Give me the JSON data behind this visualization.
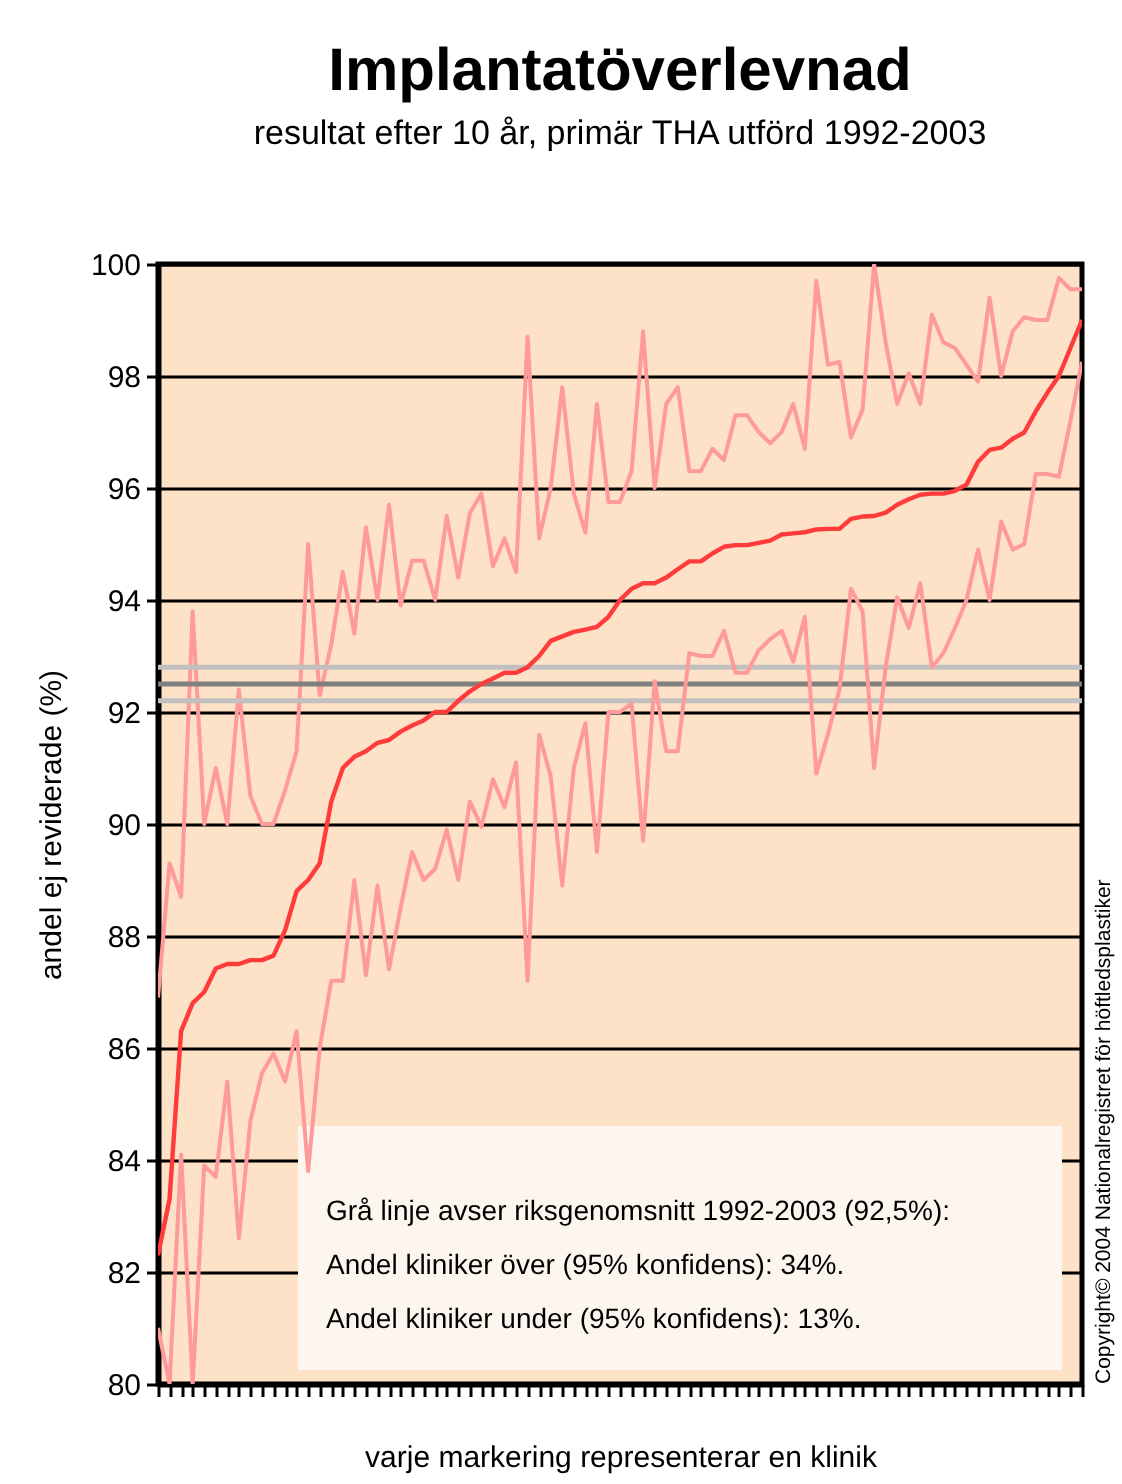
{
  "chart_data": {
    "type": "line",
    "title": "Implantatöverlevnad",
    "subtitle": "resultat efter 10 år, primär THA utförd 1992-2003",
    "xlabel": "varje markering representerar en klinik",
    "ylabel": "andel ej reviderade (%)",
    "categories": [
      null,
      null,
      null,
      null,
      null,
      null,
      null,
      null,
      null,
      null,
      null,
      null,
      null,
      null,
      null,
      null,
      null,
      null,
      null,
      null,
      null,
      null,
      null,
      null,
      null,
      null,
      null,
      null,
      null,
      null,
      null,
      null,
      null,
      null,
      null,
      null,
      null,
      null,
      null,
      null,
      null,
      null,
      null,
      null,
      null,
      null,
      null,
      null,
      null,
      null,
      null,
      null,
      null,
      null,
      null,
      null,
      null,
      null,
      null,
      null,
      null,
      null,
      null,
      null,
      null,
      null,
      null,
      null,
      null,
      null,
      null,
      null,
      null,
      null,
      null,
      null,
      null,
      null,
      null,
      null,
      null
    ],
    "series": [
      {
        "color": "#ff9a9a",
        "values": [
          86.9,
          89.3,
          88.7,
          93.8,
          90.0,
          91.0,
          90.0,
          92.4,
          90.5,
          90.0,
          90.0,
          90.6,
          91.3,
          95.0,
          92.3,
          93.2,
          94.5,
          93.4,
          95.3,
          94.0,
          95.7,
          93.9,
          94.7,
          94.7,
          94.0,
          95.5,
          94.4,
          95.55,
          95.9,
          94.6,
          95.1,
          94.5,
          98.7,
          95.1,
          96.0,
          97.8,
          95.9,
          95.2,
          97.5,
          95.75,
          95.75,
          96.3,
          98.8,
          96.0,
          97.5,
          97.8,
          96.3,
          96.3,
          96.7,
          96.5,
          97.3,
          97.3,
          97.0,
          96.8,
          97.0,
          97.5,
          96.7,
          99.7,
          98.2,
          98.25,
          96.9,
          97.4,
          100.0,
          98.6,
          97.5,
          98.05,
          97.5,
          99.1,
          98.6,
          98.5,
          98.2,
          97.9,
          99.4,
          98.0,
          98.8,
          99.05,
          99.0,
          99.0,
          99.75,
          99.55,
          99.55
        ]
      },
      {
        "color": "#ff9a9a",
        "values": [
          81.0,
          80.0,
          84.1,
          80.0,
          83.9,
          83.7,
          85.4,
          82.6,
          84.7,
          85.55,
          85.9,
          85.4,
          86.3,
          83.8,
          86.0,
          87.2,
          87.2,
          89.0,
          87.3,
          88.9,
          87.4,
          88.5,
          89.5,
          89.0,
          89.2,
          89.9,
          89.0,
          90.4,
          89.95,
          90.8,
          90.3,
          91.1,
          87.2,
          91.6,
          90.85,
          88.9,
          91.0,
          91.8,
          89.5,
          92.0,
          92.0,
          92.15,
          89.7,
          92.55,
          91.3,
          91.3,
          93.05,
          93.0,
          93.0,
          93.45,
          92.7,
          92.7,
          93.1,
          93.3,
          93.45,
          92.9,
          93.7,
          90.9,
          91.6,
          92.4,
          94.2,
          93.8,
          91.0,
          92.8,
          94.05,
          93.5,
          94.3,
          92.8,
          93.05,
          93.5,
          94.0,
          94.9,
          94.0,
          95.4,
          94.9,
          95.0,
          96.25,
          96.25,
          96.2,
          97.2,
          98.25
        ]
      },
      {
        "color": "#ff3b3b",
        "values": [
          82.3,
          83.3,
          86.3,
          86.8,
          87.0,
          87.42,
          87.5,
          87.5,
          87.57,
          87.57,
          87.65,
          88.1,
          88.8,
          89.0,
          89.3,
          90.4,
          91.0,
          91.2,
          91.3,
          91.45,
          91.5,
          91.65,
          91.76,
          91.85,
          92.0,
          92.0,
          92.2,
          92.37,
          92.5,
          92.6,
          92.7,
          92.7,
          92.8,
          93.0,
          93.27,
          93.35,
          93.43,
          93.47,
          93.52,
          93.7,
          94.0,
          94.2,
          94.3,
          94.3,
          94.4,
          94.55,
          94.69,
          94.69,
          94.83,
          94.95,
          94.98,
          94.98,
          95.02,
          95.06,
          95.17,
          95.19,
          95.21,
          95.26,
          95.27,
          95.27,
          95.45,
          95.49,
          95.5,
          95.56,
          95.7,
          95.8,
          95.88,
          95.9,
          95.9,
          95.95,
          96.06,
          96.47,
          96.68,
          96.72,
          96.88,
          96.99,
          97.37,
          97.7,
          98.0,
          98.5,
          99.0
        ]
      }
    ],
    "ylim": [
      80,
      100
    ],
    "yticks": [
      80,
      82,
      84,
      86,
      88,
      90,
      92,
      94,
      96,
      98,
      100
    ],
    "grid": "y",
    "tick_labels": "y",
    "ref_lines": [
      {
        "axis": "y",
        "value": 92.8,
        "color": "#c0c0c0"
      },
      {
        "axis": "y",
        "value": 92.2,
        "color": "#c0c0c0"
      },
      {
        "axis": "y",
        "value": 92.5,
        "color": "#808080"
      }
    ],
    "annotations": [
      "Grå linje avser riksgenomsnitt 1992-2003 (92,5%):",
      "Andel kliniker över   (95% konfidens): 34%.",
      "Andel kliniker under (95% konfidens): 13%.",
      "Copyright© 2004 Nationalregistret för höftledsplastiker"
    ]
  }
}
